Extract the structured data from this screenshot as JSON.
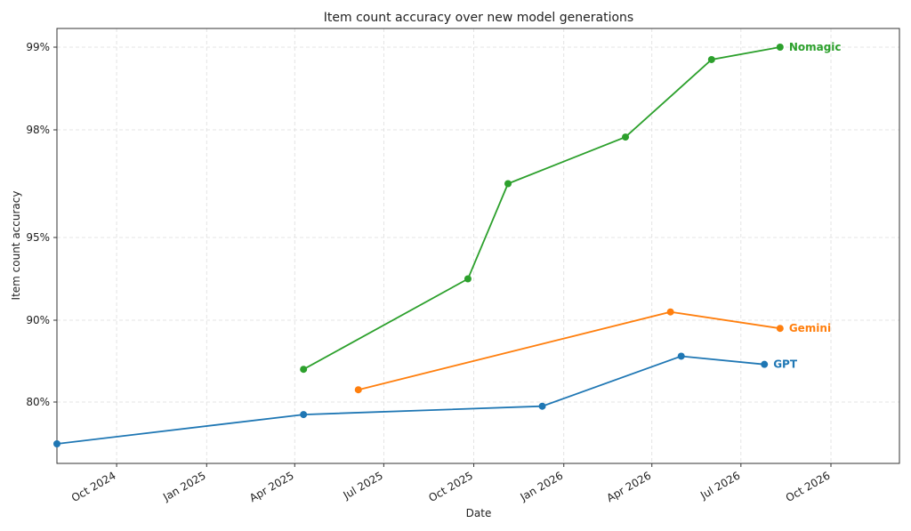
{
  "chart_data": {
    "type": "line",
    "title": "Item count accuracy over new model generations",
    "xlabel": "Date",
    "ylabel": "Item count accuracy",
    "xlim": [
      "2024-08-01",
      "2026-12-10"
    ],
    "y_axis_note": "non-linear (transformed) scale",
    "y_ticks": [
      {
        "value": 80,
        "label": "80%"
      },
      {
        "value": 90,
        "label": "90%"
      },
      {
        "value": 95,
        "label": "95%"
      },
      {
        "value": 98,
        "label": "98%"
      },
      {
        "value": 99,
        "label": "99%"
      }
    ],
    "x_ticks": [
      {
        "date": "2024-10-01",
        "label": "Oct 2024"
      },
      {
        "date": "2025-01-01",
        "label": "Jan 2025"
      },
      {
        "date": "2025-04-01",
        "label": "Apr 2025"
      },
      {
        "date": "2025-07-01",
        "label": "Jul 2025"
      },
      {
        "date": "2025-10-01",
        "label": "Oct 2025"
      },
      {
        "date": "2026-01-01",
        "label": "Jan 2026"
      },
      {
        "date": "2026-04-01",
        "label": "Apr 2026"
      },
      {
        "date": "2026-07-01",
        "label": "Jul 2026"
      },
      {
        "date": "2026-10-01",
        "label": "Oct 2026"
      }
    ],
    "grid": true,
    "series": [
      {
        "name": "GPT",
        "color": "#1f77b4",
        "x": [
          "2024-08-01",
          "2025-04-10",
          "2025-12-10",
          "2026-05-01",
          "2026-07-25"
        ],
        "y": [
          70.0,
          77.0,
          79.0,
          85.6,
          84.6
        ]
      },
      {
        "name": "Gemini",
        "color": "#ff7f0e",
        "x": [
          "2025-06-05",
          "2026-04-20",
          "2026-08-10"
        ],
        "y": [
          81.5,
          90.5,
          89.0
        ]
      },
      {
        "name": "Nomagic",
        "color": "#2ca02c",
        "x": [
          "2025-04-10",
          "2025-09-25",
          "2025-11-05",
          "2026-03-05",
          "2026-06-01",
          "2026-08-10"
        ],
        "y": [
          84.0,
          92.5,
          96.5,
          97.8,
          98.85,
          99.0
        ]
      }
    ]
  }
}
